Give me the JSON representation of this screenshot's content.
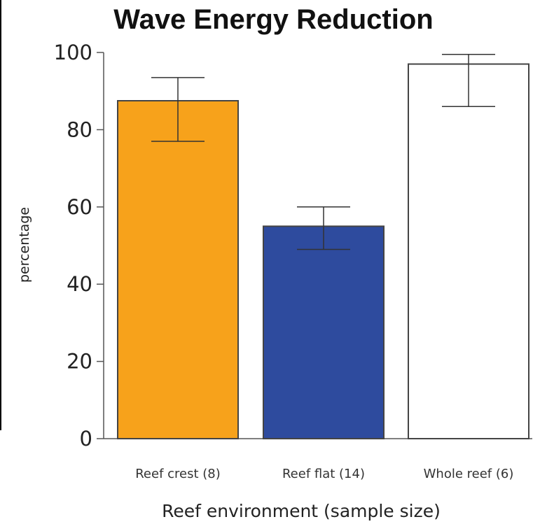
{
  "chart_data": {
    "type": "bar",
    "title": "Wave Energy Reduction",
    "xlabel": "Reef environment (sample size)",
    "ylabel": "percentage",
    "categories": [
      "Reef crest (8)",
      "Reef flat (14)",
      "Whole reef (6)"
    ],
    "values": [
      87.5,
      55,
      97
    ],
    "error_low": [
      77,
      49,
      86
    ],
    "error_high": [
      93.5,
      60,
      99.5
    ],
    "colors": [
      "#F7A21B",
      "#2E4B9E",
      "#FFFFFF"
    ],
    "ylim": [
      0,
      100
    ],
    "yticks": [
      0,
      20,
      40,
      60,
      80,
      100
    ],
    "grid": false
  }
}
